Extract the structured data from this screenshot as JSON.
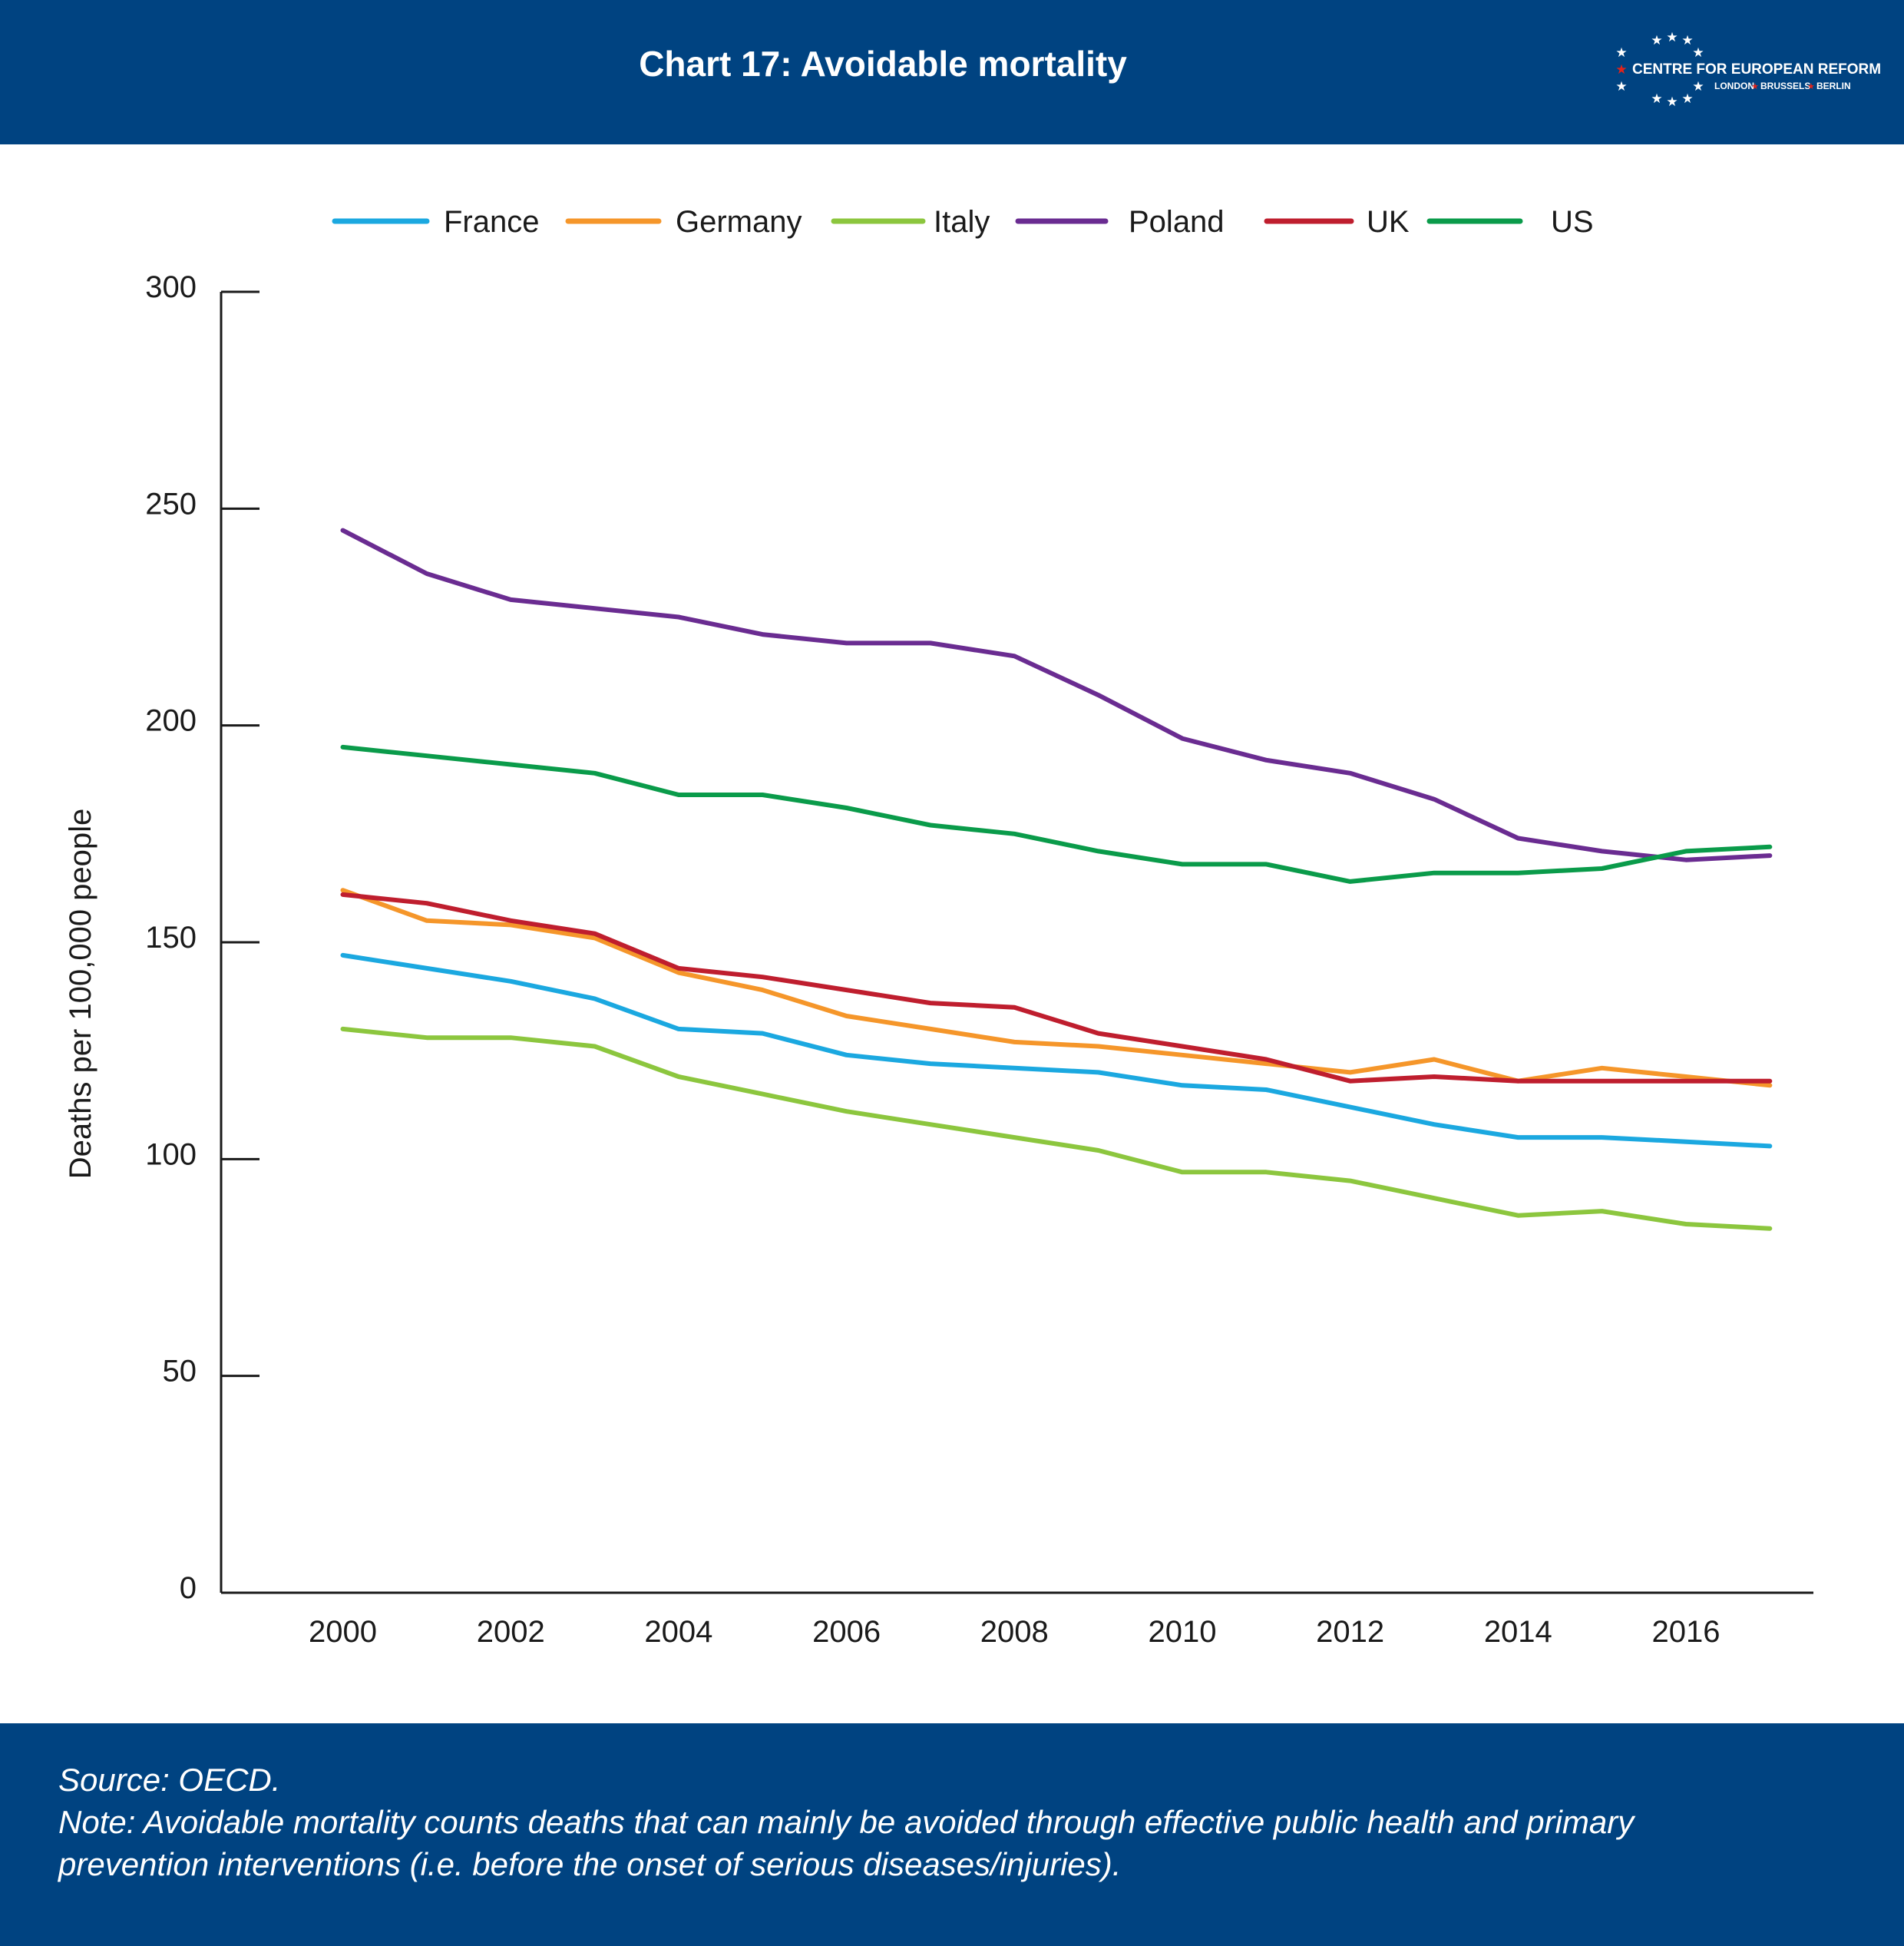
{
  "header": {
    "title": "Chart 17: Avoidable mortality",
    "logo": {
      "name": "CENTRE FOR EUROPEAN REFORM",
      "cities": [
        "LONDON",
        "BRUSSELS",
        "BERLIN"
      ]
    }
  },
  "footer": {
    "source": "Source: OECD.",
    "note_line1": "Note: Avoidable mortality counts deaths that can mainly be avoided through effective public health and primary",
    "note_line2": "prevention interventions (i.e. before the onset of serious diseases/injuries)."
  },
  "colors": {
    "brand": "#004381",
    "logo_star_accent": "#e2231a"
  },
  "chart_data": {
    "type": "line",
    "title": "Chart 17: Avoidable mortality",
    "xlabel": "",
    "ylabel": "Deaths per 100,000 people",
    "ylim": [
      0,
      300
    ],
    "xlim": [
      1998.55,
      2017.5
    ],
    "y_ticks": [
      0,
      50,
      100,
      150,
      200,
      250,
      300
    ],
    "x_ticks": [
      2000,
      2002,
      2004,
      2006,
      2008,
      2010,
      2012,
      2014,
      2016
    ],
    "legend": "top",
    "grid": false,
    "x": [
      2000,
      2001,
      2002,
      2003,
      2004,
      2005,
      2006,
      2007,
      2008,
      2009,
      2010,
      2011,
      2012,
      2013,
      2014,
      2015,
      2016,
      2017
    ],
    "series": [
      {
        "name": "France",
        "color": "#1ba8e0",
        "values": [
          147,
          144,
          141,
          137,
          130,
          129,
          124,
          122,
          121,
          120,
          117,
          116,
          112,
          108,
          105,
          105,
          104,
          103
        ]
      },
      {
        "name": "Germany",
        "color": "#f5962a",
        "values": [
          162,
          155,
          154,
          151,
          143,
          139,
          133,
          130,
          127,
          126,
          124,
          122,
          120,
          123,
          118,
          121,
          119,
          117
        ]
      },
      {
        "name": "Italy",
        "color": "#8cc63e",
        "values": [
          130,
          128,
          128,
          126,
          119,
          115,
          111,
          108,
          105,
          102,
          97,
          97,
          95,
          91,
          87,
          88,
          85,
          84
        ]
      },
      {
        "name": "Poland",
        "color": "#6a2c91",
        "values": [
          245,
          235,
          229,
          227,
          225,
          221,
          219,
          219,
          216,
          207,
          197,
          192,
          189,
          183,
          174,
          171,
          169,
          170
        ]
      },
      {
        "name": "UK",
        "color": "#bf1e2e",
        "values": [
          161,
          159,
          155,
          152,
          144,
          142,
          139,
          136,
          135,
          129,
          126,
          123,
          118,
          119,
          118,
          118,
          118,
          118
        ]
      },
      {
        "name": "US",
        "color": "#0a9b4a",
        "values": [
          195,
          193,
          191,
          189,
          184,
          184,
          181,
          177,
          175,
          171,
          168,
          168,
          164,
          166,
          166,
          167,
          171,
          172
        ]
      }
    ]
  }
}
